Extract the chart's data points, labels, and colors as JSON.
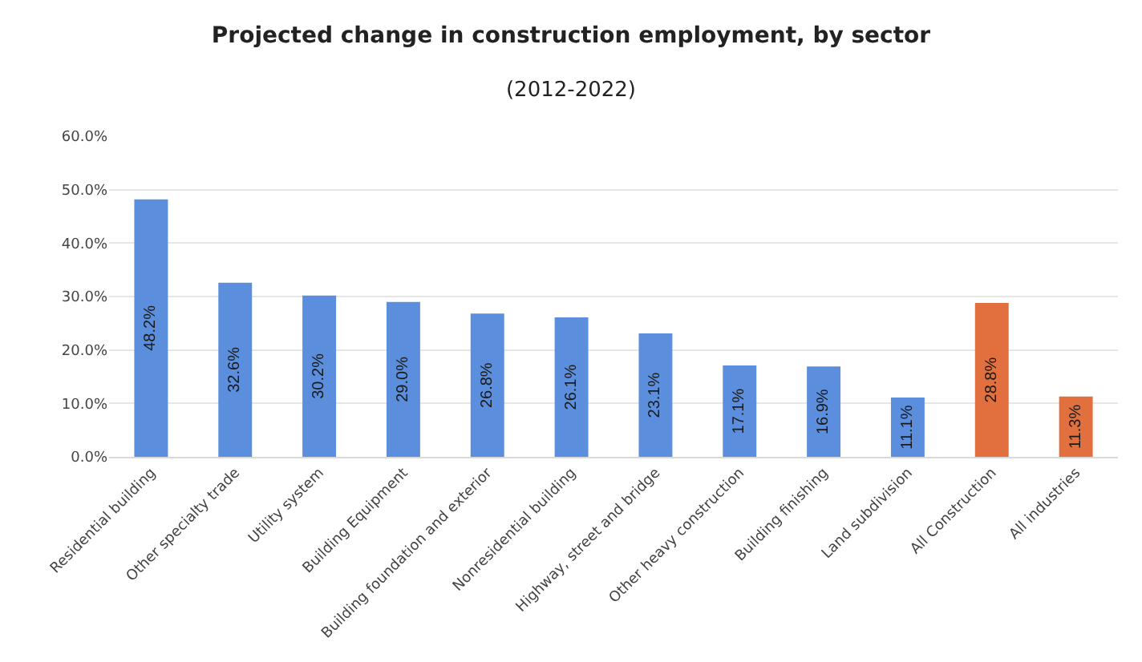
{
  "chart_data": {
    "type": "bar",
    "title": "Projected change in construction employment, by sector",
    "subtitle": "(2012-2022)",
    "categories": [
      "Residential building",
      "Other specialty trade",
      "Utility system",
      "Building Equipment",
      "Building foundation and exterior",
      "Nonresidential building",
      "Highway, street and bridge",
      "Other heavy construction",
      "Building finishing",
      "Land subdivision",
      "All Construction",
      "All industries"
    ],
    "values": [
      48.2,
      32.6,
      30.2,
      29.0,
      26.8,
      26.1,
      23.1,
      17.1,
      16.9,
      11.1,
      28.8,
      11.3
    ],
    "value_labels": [
      "48.2%",
      "32.6%",
      "30.2%",
      "29.0%",
      "26.8%",
      "26.1%",
      "23.1%",
      "17.1%",
      "16.9%",
      "11.1%",
      "28.8%",
      "11.3%"
    ],
    "colors": [
      "#5b8fde",
      "#5b8fde",
      "#5b8fde",
      "#5b8fde",
      "#5b8fde",
      "#5b8fde",
      "#5b8fde",
      "#5b8fde",
      "#5b8fde",
      "#5b8fde",
      "#e2703e",
      "#e2703e"
    ],
    "ylim": [
      0,
      60
    ],
    "yticks": [
      {
        "value": 0,
        "label": "0.0%"
      },
      {
        "value": 10,
        "label": "10.0%"
      },
      {
        "value": 20,
        "label": "20.0%"
      },
      {
        "value": 30,
        "label": "30.0%"
      },
      {
        "value": 40,
        "label": "40.0%"
      },
      {
        "value": 50,
        "label": "50.0%"
      },
      {
        "value": 60,
        "label": "60.0%"
      }
    ],
    "grid": "y"
  }
}
